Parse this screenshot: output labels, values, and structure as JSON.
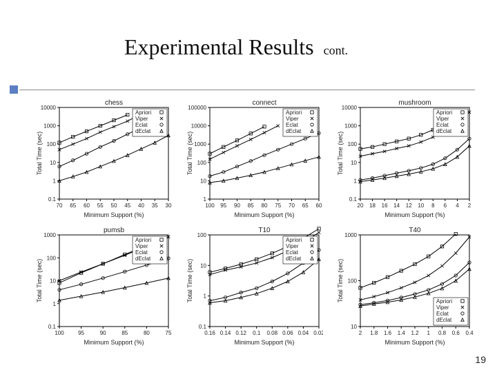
{
  "title": "Experimental Results",
  "title_cont": "cont.",
  "page_number": "19",
  "background": "#ffffff",
  "accent_color": "#5b7fc2",
  "axis_color": "#000000",
  "series_color": "#000000",
  "xlabel": "Minimum Support (%)",
  "ylabel": "Total Time (sec)",
  "legend_labels": [
    "Apriori",
    "Viper",
    "Eclat",
    "dEclat"
  ],
  "legend_markers": [
    "square",
    "x",
    "circle",
    "triangle"
  ],
  "charts": [
    {
      "title": "chess",
      "x_ticks": [
        70,
        65,
        60,
        55,
        50,
        45,
        40,
        35,
        30
      ],
      "y_decades": [
        0.1,
        1,
        10,
        100,
        1000,
        10000
      ],
      "legend_pos": "inside-right-top",
      "series": [
        {
          "name": "Apriori",
          "marker": "square",
          "xy": [
            [
              70,
              120
            ],
            [
              65,
              250
            ],
            [
              60,
              500
            ],
            [
              55,
              1000
            ],
            [
              50,
              2000
            ],
            [
              45,
              4000
            ]
          ]
        },
        {
          "name": "Viper",
          "marker": "x",
          "xy": [
            [
              70,
              50
            ],
            [
              65,
              100
            ],
            [
              60,
              200
            ],
            [
              55,
              450
            ],
            [
              50,
              900
            ],
            [
              45,
              1800
            ],
            [
              40,
              4500
            ]
          ]
        },
        {
          "name": "Eclat",
          "marker": "circle",
          "xy": [
            [
              70,
              6
            ],
            [
              65,
              13
            ],
            [
              60,
              30
            ],
            [
              55,
              70
            ],
            [
              50,
              150
            ],
            [
              45,
              350
            ],
            [
              40,
              800
            ],
            [
              35,
              1900
            ]
          ]
        },
        {
          "name": "dEclat",
          "marker": "triangle",
          "xy": [
            [
              70,
              1
            ],
            [
              65,
              1.7
            ],
            [
              60,
              3
            ],
            [
              55,
              6
            ],
            [
              50,
              12
            ],
            [
              45,
              25
            ],
            [
              40,
              55
            ],
            [
              35,
              120
            ],
            [
              30,
              300
            ]
          ]
        }
      ]
    },
    {
      "title": "connect",
      "x_ticks": [
        100,
        95,
        90,
        85,
        80,
        75,
        70,
        65,
        60
      ],
      "y_decades": [
        1,
        10,
        100,
        1000,
        10000,
        100000
      ],
      "legend_pos": "inside-right-top",
      "series": [
        {
          "name": "Apriori",
          "marker": "square",
          "xy": [
            [
              100,
              300
            ],
            [
              95,
              700
            ],
            [
              90,
              1600
            ],
            [
              85,
              3800
            ],
            [
              80,
              9000
            ]
          ]
        },
        {
          "name": "Viper",
          "marker": "x",
          "xy": [
            [
              100,
              150
            ],
            [
              95,
              350
            ],
            [
              90,
              800
            ],
            [
              85,
              1800
            ],
            [
              80,
              4200
            ],
            [
              75,
              10000
            ]
          ]
        },
        {
          "name": "Eclat",
          "marker": "circle",
          "xy": [
            [
              100,
              18
            ],
            [
              95,
              30
            ],
            [
              90,
              60
            ],
            [
              85,
              120
            ],
            [
              80,
              250
            ],
            [
              75,
              500
            ],
            [
              70,
              1000
            ],
            [
              65,
              2000
            ],
            [
              60,
              4000
            ]
          ]
        },
        {
          "name": "dEclat",
          "marker": "triangle",
          "xy": [
            [
              100,
              8
            ],
            [
              95,
              10
            ],
            [
              90,
              14
            ],
            [
              85,
              20
            ],
            [
              80,
              30
            ],
            [
              75,
              48
            ],
            [
              70,
              78
            ],
            [
              65,
              125
            ],
            [
              60,
              200
            ]
          ]
        }
      ]
    },
    {
      "title": "mushroom",
      "x_ticks": [
        20,
        18,
        16,
        14,
        12,
        10,
        8,
        6,
        4,
        2
      ],
      "y_decades": [
        0.1,
        1,
        10,
        100,
        1000,
        10000
      ],
      "legend_pos": "inside-right-top",
      "series": [
        {
          "name": "Apriori",
          "marker": "square",
          "xy": [
            [
              20,
              55
            ],
            [
              18,
              70
            ],
            [
              16,
              100
            ],
            [
              14,
              140
            ],
            [
              12,
              200
            ],
            [
              10,
              320
            ],
            [
              8,
              600
            ],
            [
              6,
              1400
            ],
            [
              4,
              3700
            ]
          ]
        },
        {
          "name": "Viper",
          "marker": "x",
          "xy": [
            [
              20,
              22
            ],
            [
              18,
              30
            ],
            [
              16,
              40
            ],
            [
              14,
              58
            ],
            [
              12,
              80
            ],
            [
              10,
              130
            ],
            [
              8,
              240
            ],
            [
              6,
              600
            ],
            [
              4,
              1700
            ],
            [
              2,
              5500
            ]
          ]
        },
        {
          "name": "Eclat",
          "marker": "circle",
          "xy": [
            [
              20,
              1.1
            ],
            [
              18,
              1.4
            ],
            [
              16,
              1.9
            ],
            [
              14,
              2.6
            ],
            [
              12,
              3.5
            ],
            [
              10,
              5
            ],
            [
              8,
              8
            ],
            [
              6,
              17
            ],
            [
              4,
              50
            ],
            [
              2,
              200
            ]
          ]
        },
        {
          "name": "dEclat",
          "marker": "triangle",
          "xy": [
            [
              20,
              0.9
            ],
            [
              18,
              1.1
            ],
            [
              16,
              1.4
            ],
            [
              14,
              1.8
            ],
            [
              12,
              2.3
            ],
            [
              10,
              3.1
            ],
            [
              8,
              4.5
            ],
            [
              6,
              8
            ],
            [
              4,
              20
            ],
            [
              2,
              80
            ]
          ]
        }
      ]
    },
    {
      "title": "pumsb",
      "x_ticks": [
        100,
        95,
        90,
        85,
        80,
        75
      ],
      "y_decades": [
        0.1,
        1,
        10,
        100,
        1000
      ],
      "legend_pos": "inside-right-top",
      "series": [
        {
          "name": "Apriori",
          "marker": "square",
          "xy": [
            [
              100,
              8
            ],
            [
              95,
              22
            ],
            [
              90,
              55
            ],
            [
              85,
              140
            ],
            [
              80,
              350
            ]
          ]
        },
        {
          "name": "Viper",
          "marker": "x",
          "xy": [
            [
              100,
              10
            ],
            [
              95,
              24
            ],
            [
              90,
              55
            ],
            [
              85,
              130
            ],
            [
              80,
              320
            ],
            [
              75,
              820
            ]
          ]
        },
        {
          "name": "Eclat",
          "marker": "circle",
          "xy": [
            [
              100,
              4
            ],
            [
              95,
              7
            ],
            [
              90,
              13
            ],
            [
              85,
              25
            ],
            [
              80,
              48
            ],
            [
              75,
              95
            ]
          ]
        },
        {
          "name": "dEclat",
          "marker": "triangle",
          "xy": [
            [
              100,
              1.4
            ],
            [
              95,
              2.1
            ],
            [
              90,
              3.2
            ],
            [
              85,
              5
            ],
            [
              80,
              8
            ],
            [
              75,
              13
            ]
          ]
        }
      ]
    },
    {
      "title": "T10",
      "x_ticks": [
        0.16,
        0.14,
        0.12,
        0.1,
        0.08,
        0.06,
        0.04,
        0.02
      ],
      "y_decades": [
        0.1,
        1,
        10,
        100
      ],
      "legend_pos": "inside-right-top",
      "series": [
        {
          "name": "Apriori",
          "marker": "square",
          "xy": [
            [
              0.16,
              6
            ],
            [
              0.14,
              8
            ],
            [
              0.12,
              11
            ],
            [
              0.1,
              16
            ],
            [
              0.08,
              25
            ],
            [
              0.06,
              42
            ],
            [
              0.04,
              78
            ],
            [
              0.02,
              160
            ]
          ]
        },
        {
          "name": "Viper",
          "marker": "x",
          "xy": [
            [
              0.16,
              5
            ],
            [
              0.14,
              7
            ],
            [
              0.12,
              9
            ],
            [
              0.1,
              12
            ],
            [
              0.08,
              18
            ],
            [
              0.06,
              30
            ],
            [
              0.04,
              58
            ],
            [
              0.02,
              120
            ]
          ]
        },
        {
          "name": "Eclat",
          "marker": "circle",
          "xy": [
            [
              0.16,
              0.7
            ],
            [
              0.14,
              0.9
            ],
            [
              0.12,
              1.3
            ],
            [
              0.1,
              1.8
            ],
            [
              0.08,
              3
            ],
            [
              0.06,
              5.5
            ],
            [
              0.04,
              12
            ],
            [
              0.02,
              32
            ]
          ]
        },
        {
          "name": "dEclat",
          "marker": "triangle",
          "xy": [
            [
              0.16,
              0.6
            ],
            [
              0.14,
              0.7
            ],
            [
              0.12,
              0.9
            ],
            [
              0.1,
              1.2
            ],
            [
              0.08,
              1.8
            ],
            [
              0.06,
              3
            ],
            [
              0.04,
              6
            ],
            [
              0.02,
              16
            ]
          ]
        }
      ]
    },
    {
      "title": "T40",
      "x_ticks": [
        2,
        1.8,
        1.6,
        1.4,
        1.2,
        1,
        0.8,
        0.6,
        0.4
      ],
      "y_decades": [
        10,
        100,
        1000
      ],
      "legend_pos": "inside-right-bottom",
      "series": [
        {
          "name": "Apriori",
          "marker": "square",
          "xy": [
            [
              2,
              70
            ],
            [
              1.8,
              90
            ],
            [
              1.6,
              120
            ],
            [
              1.4,
              165
            ],
            [
              1.2,
              230
            ],
            [
              1,
              340
            ],
            [
              0.8,
              560
            ],
            [
              0.6,
              1050
            ]
          ]
        },
        {
          "name": "Viper",
          "marker": "x",
          "xy": [
            [
              2,
              38
            ],
            [
              1.8,
              45
            ],
            [
              1.6,
              55
            ],
            [
              1.4,
              70
            ],
            [
              1.2,
              92
            ],
            [
              1,
              130
            ],
            [
              0.8,
              210
            ],
            [
              0.6,
              400
            ],
            [
              0.4,
              900
            ]
          ]
        },
        {
          "name": "Eclat",
          "marker": "circle",
          "xy": [
            [
              2,
              30
            ],
            [
              1.8,
              33
            ],
            [
              1.6,
              37
            ],
            [
              1.4,
              43
            ],
            [
              1.2,
              51
            ],
            [
              1,
              63
            ],
            [
              0.8,
              85
            ],
            [
              0.6,
              130
            ],
            [
              0.4,
              250
            ]
          ]
        },
        {
          "name": "dEclat",
          "marker": "triangle",
          "xy": [
            [
              2,
              28
            ],
            [
              1.8,
              31
            ],
            [
              1.6,
              34
            ],
            [
              1.4,
              38
            ],
            [
              1.2,
              44
            ],
            [
              1,
              53
            ],
            [
              0.8,
              68
            ],
            [
              0.6,
              100
            ],
            [
              0.4,
              180
            ]
          ]
        }
      ]
    }
  ]
}
